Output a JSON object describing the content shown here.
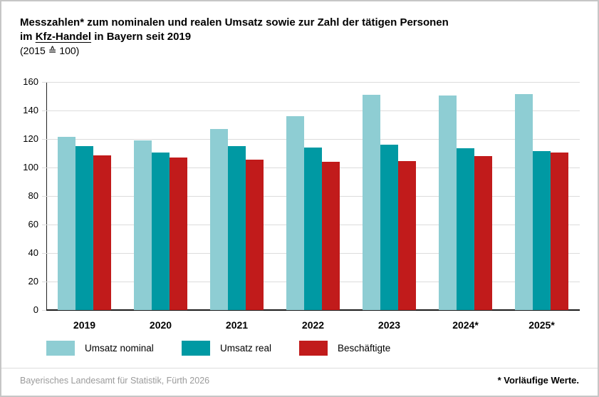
{
  "header": {
    "title_line1": "Messzahlen* zum nominalen und realen Umsatz sowie zur Zahl der tätigen Personen",
    "title_line2_pre": "im ",
    "title_line2_underlined": "Kfz-Handel",
    "title_line2_post": " in Bayern seit 2019",
    "subtitle": "(2015 ≙ 100)"
  },
  "chart_data": {
    "type": "bar",
    "categories": [
      "2019",
      "2020",
      "2021",
      "2022",
      "2023",
      "2024*",
      "2025*"
    ],
    "series": [
      {
        "name": "Umsatz nominal",
        "color": "#8ECDD3",
        "values": [
          121.5,
          119,
          127,
          136,
          151,
          150.5,
          151.5
        ]
      },
      {
        "name": "Umsatz real",
        "color": "#0099A3",
        "values": [
          115,
          110.5,
          115,
          114,
          116,
          113.5,
          111.5
        ]
      },
      {
        "name": "Beschäftigte",
        "color": "#C11B1B",
        "values": [
          108.5,
          107,
          105.5,
          104,
          104.5,
          108,
          110.5
        ]
      }
    ],
    "title": "Messzahlen zum nominalen und realen Umsatz sowie zur Zahl der tätigen Personen im Kfz-Handel in Bayern seit 2019 (2015 ≙ 100)",
    "xlabel": "",
    "ylabel": "",
    "ylim": [
      0,
      160
    ],
    "ytick_step": 20,
    "grid": true,
    "legend_position": "bottom"
  },
  "footer": {
    "source": "Bayerisches Landesamt für Statistik, Fürth 2026",
    "note": "* Vorläufige Werte."
  }
}
